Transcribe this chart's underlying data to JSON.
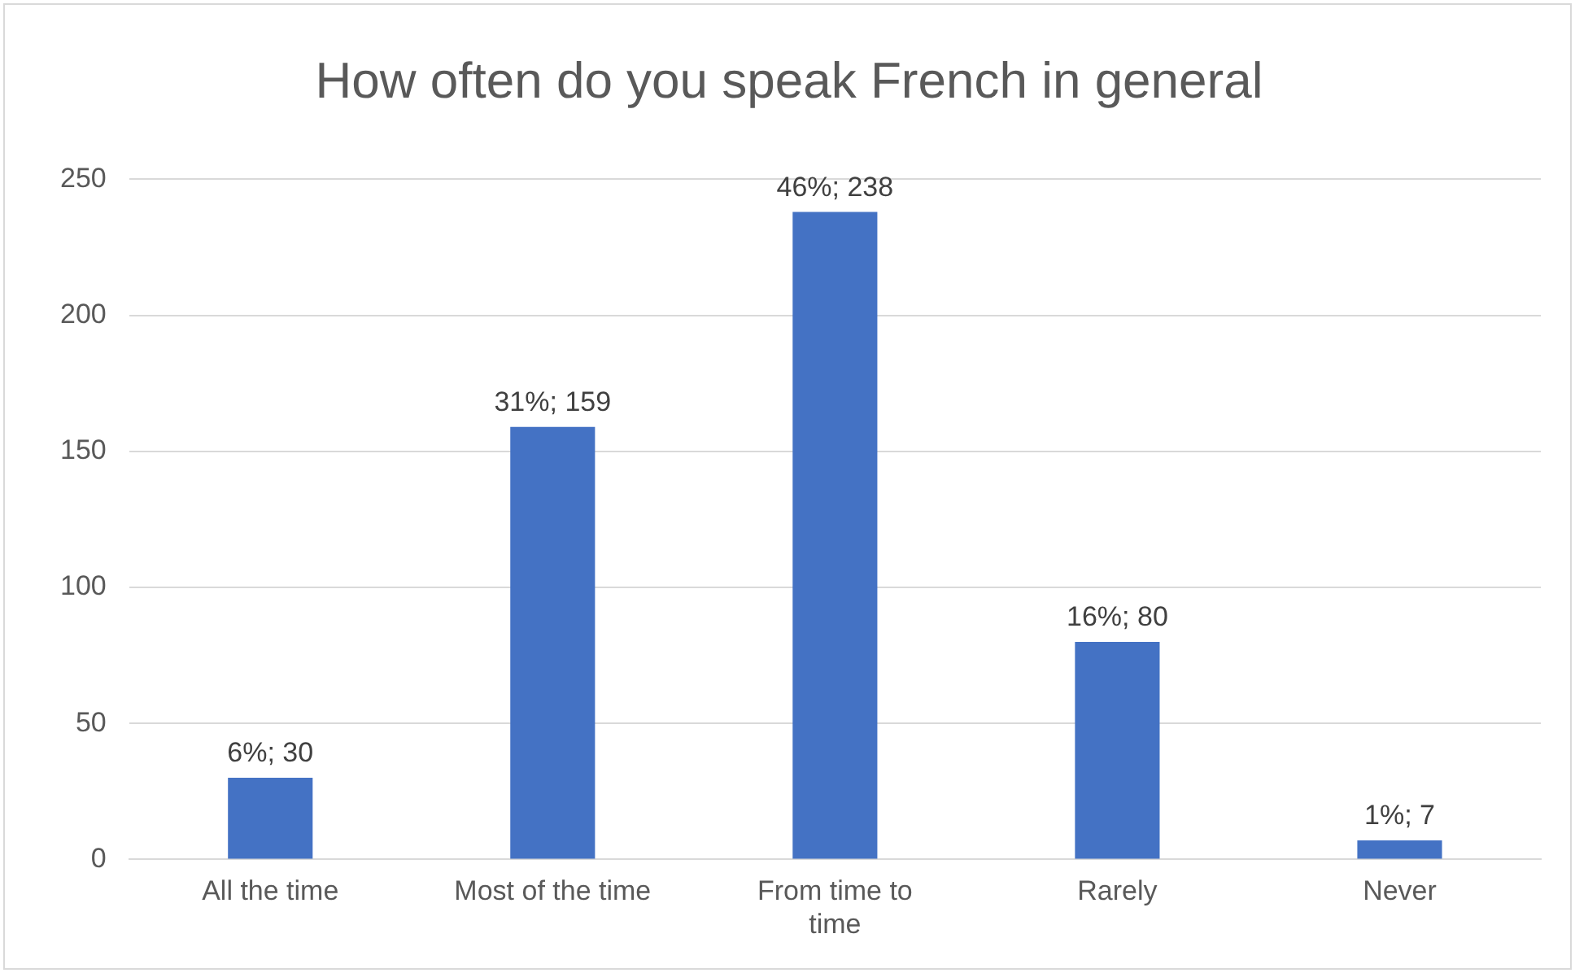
{
  "chart_data": {
    "type": "bar",
    "title": "How often do you speak French in general",
    "categories": [
      "All the time",
      "Most of the time",
      "From time to time",
      "Rarely",
      "Never"
    ],
    "values": [
      30,
      159,
      238,
      80,
      7
    ],
    "value_labels": [
      "6%; 30",
      "31%; 159",
      "46%; 238",
      "16%; 80",
      "1%; 7"
    ],
    "color": "#4472c4",
    "ylim": [
      0,
      250
    ],
    "yticks": [
      0,
      50,
      100,
      150,
      200,
      250
    ],
    "grid": "y",
    "legend": false
  }
}
